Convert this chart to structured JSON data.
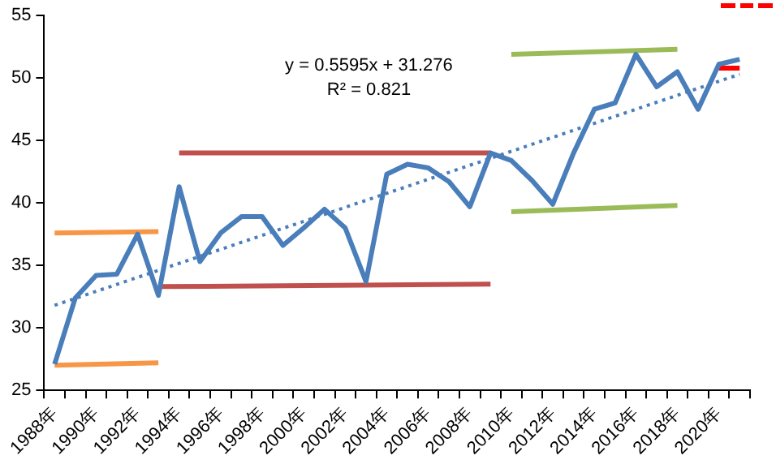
{
  "chart_data": {
    "type": "line",
    "categories": [
      "1988年",
      null,
      "1990年",
      null,
      "1992年",
      null,
      "1994年",
      null,
      "1996年",
      null,
      "1998年",
      null,
      "2000年",
      null,
      "2002年",
      null,
      "2004年",
      null,
      "2006年",
      null,
      "2008年",
      null,
      "2010年",
      null,
      "2012年",
      null,
      "2014年",
      null,
      "2016年",
      null,
      "2018年",
      null,
      "2020年",
      null
    ],
    "ylim": [
      25,
      55
    ],
    "yticks": [
      25,
      30,
      35,
      40,
      45,
      50,
      55
    ],
    "grid": false,
    "legend": false,
    "marker": "none",
    "annotations": [
      "y = 0.5595x + 31.276",
      "R² = 0.821"
    ],
    "series": [
      {
        "color": "#4a7ebb",
        "values": [
          27.1,
          32.4,
          34.2,
          34.3,
          37.5,
          32.6,
          41.3,
          35.3,
          37.6,
          38.9,
          38.9,
          36.6,
          38.0,
          39.5,
          38.0,
          33.7,
          42.3,
          43.1,
          42.8,
          41.7,
          39.7,
          44.0,
          43.4,
          41.8,
          39.9,
          44.0,
          47.5,
          48.0,
          51.9,
          49.3,
          50.5,
          47.5,
          51.1,
          51.5
        ]
      },
      {
        "color": "#4a7ebb",
        "line_style": "dotted",
        "values": [
          31.8,
          null,
          null,
          null,
          null,
          null,
          null,
          null,
          null,
          null,
          null,
          null,
          null,
          null,
          null,
          null,
          null,
          null,
          null,
          null,
          null,
          null,
          null,
          null,
          null,
          null,
          null,
          null,
          null,
          null,
          null,
          null,
          null,
          50.3
        ]
      },
      {
        "color": "#f79646",
        "values": [
          37.6,
          null,
          null,
          null,
          null,
          37.7,
          null,
          null,
          null,
          null,
          null,
          null,
          null,
          null,
          null,
          null,
          null,
          null,
          null,
          null,
          null,
          null,
          null,
          null,
          null,
          null,
          null,
          null,
          null,
          null,
          null,
          null,
          null,
          null
        ]
      },
      {
        "color": "#f79646",
        "values": [
          27.0,
          null,
          null,
          null,
          null,
          27.2,
          null,
          null,
          null,
          null,
          null,
          null,
          null,
          null,
          null,
          null,
          null,
          null,
          null,
          null,
          null,
          null,
          null,
          null,
          null,
          null,
          null,
          null,
          null,
          null,
          null,
          null,
          null,
          null
        ]
      },
      {
        "color": "#c0504d",
        "values": [
          null,
          null,
          null,
          null,
          null,
          null,
          44.0,
          null,
          null,
          null,
          null,
          null,
          null,
          null,
          null,
          null,
          null,
          null,
          null,
          null,
          null,
          44.0,
          null,
          null,
          null,
          null,
          null,
          null,
          null,
          null,
          null,
          null,
          null,
          null
        ]
      },
      {
        "color": "#c0504d",
        "values": [
          null,
          null,
          null,
          null,
          null,
          33.3,
          null,
          null,
          null,
          null,
          null,
          null,
          null,
          null,
          null,
          null,
          null,
          null,
          null,
          null,
          null,
          33.5,
          null,
          null,
          null,
          null,
          null,
          null,
          null,
          null,
          null,
          null,
          null,
          null
        ]
      },
      {
        "color": "#9bbb59",
        "values": [
          null,
          null,
          null,
          null,
          null,
          null,
          null,
          null,
          null,
          null,
          null,
          null,
          null,
          null,
          null,
          null,
          null,
          null,
          null,
          null,
          null,
          null,
          51.9,
          null,
          null,
          null,
          null,
          null,
          null,
          null,
          52.3,
          null,
          null,
          null
        ]
      },
      {
        "color": "#9bbb59",
        "values": [
          null,
          null,
          null,
          null,
          null,
          null,
          null,
          null,
          null,
          null,
          null,
          null,
          null,
          null,
          null,
          null,
          null,
          null,
          null,
          null,
          null,
          null,
          39.3,
          null,
          null,
          null,
          null,
          null,
          null,
          null,
          39.8,
          null,
          null,
          null
        ]
      },
      {
        "color": "#ff0000",
        "values": [
          null,
          null,
          null,
          null,
          null,
          null,
          null,
          null,
          null,
          null,
          null,
          null,
          null,
          null,
          null,
          null,
          null,
          null,
          null,
          null,
          null,
          null,
          null,
          null,
          null,
          null,
          null,
          null,
          null,
          null,
          null,
          null,
          50.8,
          50.8
        ]
      }
    ]
  }
}
